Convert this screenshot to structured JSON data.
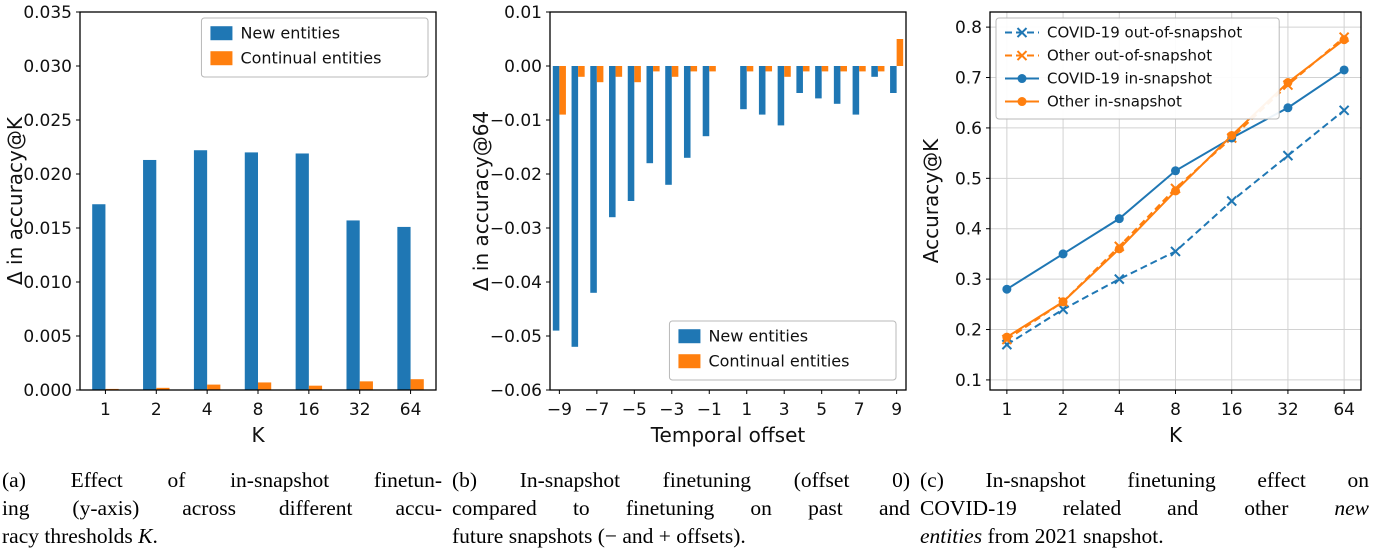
{
  "figure": {
    "background": "#ffffff",
    "accent_colors": {
      "blue": "#1f77b4",
      "orange": "#ff7f0e",
      "grid": "#d2d2d2"
    }
  },
  "chart_data": [
    {
      "id": "a",
      "type": "bar",
      "title": "",
      "xlabel": "K",
      "ylabel": "Δ in accuracy@K",
      "categories": [
        "1",
        "2",
        "4",
        "8",
        "16",
        "32",
        "64"
      ],
      "xtick_labels": [
        "1",
        "2",
        "4",
        "8",
        "16",
        "32",
        "64"
      ],
      "series": [
        {
          "name": "New entities",
          "color": "#1f77b4",
          "values": [
            0.0172,
            0.0213,
            0.0222,
            0.022,
            0.0219,
            0.0157,
            0.0151
          ]
        },
        {
          "name": "Continual entities",
          "color": "#ff7f0e",
          "values": [
            0.0001,
            0.0002,
            0.0005,
            0.0007,
            0.0004,
            0.0008,
            0.001
          ]
        }
      ],
      "ylim": [
        0,
        0.035
      ],
      "yticks": [
        0,
        0.005,
        0.01,
        0.015,
        0.02,
        0.025,
        0.03,
        0.035
      ],
      "ytick_labels": [
        "0.000",
        "0.005",
        "0.010",
        "0.015",
        "0.020",
        "0.025",
        "0.030",
        "0.035"
      ],
      "legend_position": "upper right",
      "grid": false
    },
    {
      "id": "b",
      "type": "bar",
      "title": "",
      "xlabel": "Temporal offset",
      "ylabel": "Δ in accuracy@64",
      "x": [
        -9,
        -8,
        -7,
        -6,
        -5,
        -4,
        -3,
        -2,
        -1,
        1,
        2,
        3,
        4,
        5,
        6,
        7,
        8,
        9
      ],
      "xtick_values": [
        -9,
        -7,
        -5,
        -3,
        -1,
        1,
        3,
        5,
        7,
        9
      ],
      "xtick_labels": [
        "−9",
        "−7",
        "−5",
        "−3",
        "−1",
        "1",
        "3",
        "5",
        "7",
        "9"
      ],
      "series": [
        {
          "name": "New entities",
          "color": "#1f77b4",
          "values": [
            -0.049,
            -0.052,
            -0.042,
            -0.028,
            -0.025,
            -0.018,
            -0.022,
            -0.017,
            -0.013,
            -0.008,
            -0.009,
            -0.011,
            -0.005,
            -0.006,
            -0.007,
            -0.009,
            -0.002,
            -0.005
          ]
        },
        {
          "name": "Continual entities",
          "color": "#ff7f0e",
          "values": [
            -0.009,
            -0.002,
            -0.003,
            -0.002,
            -0.003,
            -0.001,
            -0.002,
            -0.001,
            -0.001,
            -0.001,
            -0.001,
            -0.002,
            -0.001,
            -0.001,
            -0.001,
            -0.001,
            -0.001,
            0.005
          ]
        }
      ],
      "ylim": [
        -0.06,
        0.01
      ],
      "yticks": [
        0.01,
        0,
        -0.01,
        -0.02,
        -0.03,
        -0.04,
        -0.05,
        -0.06
      ],
      "ytick_labels": [
        "0.01",
        "0.00",
        "−0.01",
        "−0.02",
        "−0.03",
        "−0.04",
        "−0.05",
        "−0.06"
      ],
      "legend_position": "lower right",
      "grid": false
    },
    {
      "id": "c",
      "type": "line",
      "title": "",
      "xlabel": "K",
      "ylabel": "Accuracy@K",
      "categories": [
        "1",
        "2",
        "4",
        "8",
        "16",
        "32",
        "64"
      ],
      "xtick_labels": [
        "1",
        "2",
        "4",
        "8",
        "16",
        "32",
        "64"
      ],
      "series": [
        {
          "name": "COVID-19 out-of-snapshot",
          "color": "#1f77b4",
          "dashed": true,
          "marker": "x",
          "values": [
            0.17,
            0.24,
            0.3,
            0.355,
            0.455,
            0.545,
            0.635
          ]
        },
        {
          "name": "Other out-of-snapshot",
          "color": "#ff7f0e",
          "dashed": true,
          "marker": "x",
          "values": [
            0.18,
            0.255,
            0.365,
            0.48,
            0.58,
            0.685,
            0.78
          ]
        },
        {
          "name": "COVID-19 in-snapshot",
          "color": "#1f77b4",
          "dashed": false,
          "marker": "o",
          "values": [
            0.28,
            0.35,
            0.42,
            0.515,
            0.58,
            0.64,
            0.715
          ]
        },
        {
          "name": "Other in-snapshot",
          "color": "#ff7f0e",
          "dashed": false,
          "marker": "o",
          "values": [
            0.185,
            0.255,
            0.36,
            0.475,
            0.585,
            0.69,
            0.775
          ]
        }
      ],
      "ylim": [
        0.08,
        0.83
      ],
      "yticks": [
        0.1,
        0.2,
        0.3,
        0.4,
        0.5,
        0.6,
        0.7,
        0.8
      ],
      "ytick_labels": [
        "0.1",
        "0.2",
        "0.3",
        "0.4",
        "0.5",
        "0.6",
        "0.7",
        "0.8"
      ],
      "legend_position": "upper left",
      "grid": true
    }
  ],
  "captions": [
    {
      "id": "a",
      "lines": [
        [
          {
            "t": "(a) Effect of in-snapshot finetun-"
          }
        ],
        [
          {
            "t": "ing (y-axis) across different accu-"
          }
        ],
        [
          {
            "t": "racy thresholds "
          },
          {
            "t": "K",
            "i": true
          },
          {
            "t": "."
          }
        ]
      ]
    },
    {
      "id": "b",
      "lines": [
        [
          {
            "t": "(b) In-snapshot finetuning (offset 0)"
          }
        ],
        [
          {
            "t": "compared to finetuning on past and"
          }
        ],
        [
          {
            "t": "future snapshots (− and + offsets)."
          }
        ]
      ]
    },
    {
      "id": "c",
      "lines": [
        [
          {
            "t": "(c) In-snapshot finetuning effect on"
          }
        ],
        [
          {
            "t": "COVID-19 related and other "
          },
          {
            "t": "new",
            "i": true
          }
        ],
        [
          {
            "t": "entities",
            "i": true
          },
          {
            "t": " from 2021 snapshot."
          }
        ]
      ]
    }
  ]
}
